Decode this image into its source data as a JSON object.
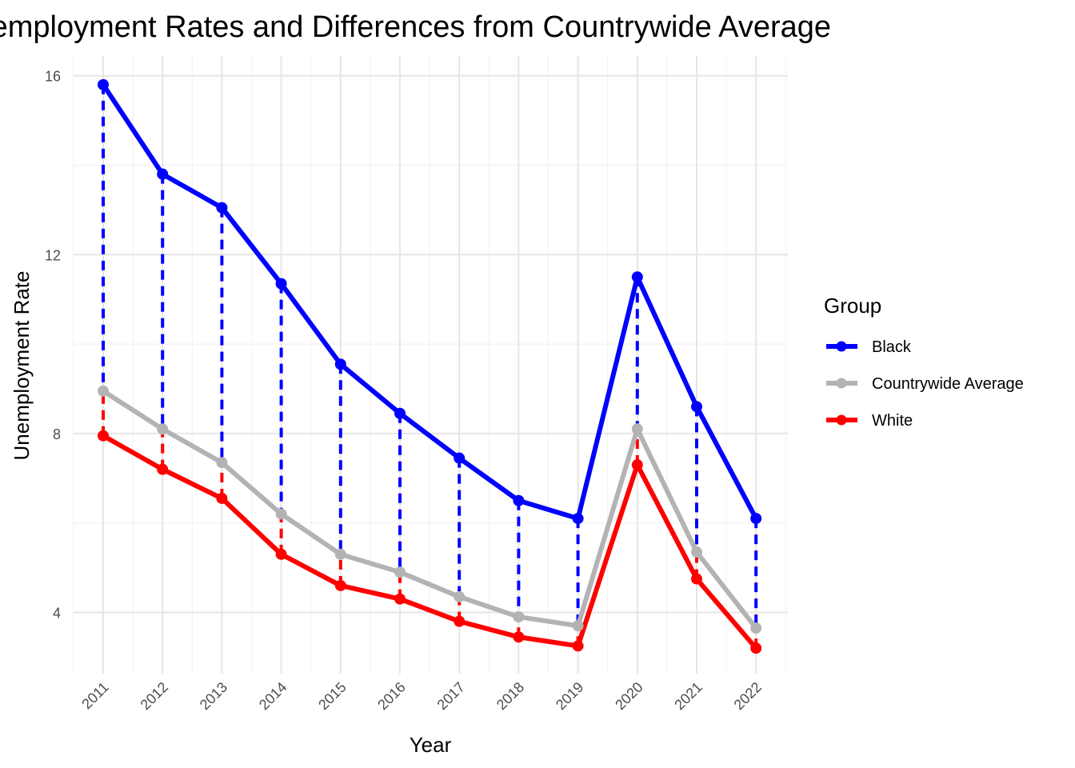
{
  "chart_data": {
    "type": "line",
    "title": "Unemployment Rates and Differences from Countrywide Average",
    "xlabel": "Year",
    "ylabel": "Unemployment Rate",
    "categories": [
      "2011",
      "2012",
      "2013",
      "2014",
      "2015",
      "2016",
      "2017",
      "2018",
      "2019",
      "2020",
      "2021",
      "2022"
    ],
    "y_ticks": [
      4,
      8,
      12,
      16
    ],
    "ylim": [
      2.6,
      16.4
    ],
    "grid": true,
    "legend": {
      "title": "Group",
      "placement": "right"
    },
    "series": [
      {
        "name": "Black",
        "color": "#0000ff",
        "values": [
          15.8,
          13.8,
          13.05,
          11.35,
          9.55,
          8.45,
          7.45,
          6.5,
          6.1,
          11.5,
          8.6,
          6.1
        ]
      },
      {
        "name": "Countrywide Average",
        "color": "#b3b3b3",
        "values": [
          8.95,
          8.1,
          7.35,
          6.2,
          5.3,
          4.9,
          4.35,
          3.9,
          3.7,
          8.1,
          5.35,
          3.65
        ]
      },
      {
        "name": "White",
        "color": "#ff0000",
        "values": [
          7.95,
          7.2,
          6.55,
          5.3,
          4.6,
          4.3,
          3.8,
          3.45,
          3.25,
          7.3,
          4.75,
          3.2
        ]
      }
    ],
    "difference_segments": "dashed lines from each group to the countrywide average"
  }
}
